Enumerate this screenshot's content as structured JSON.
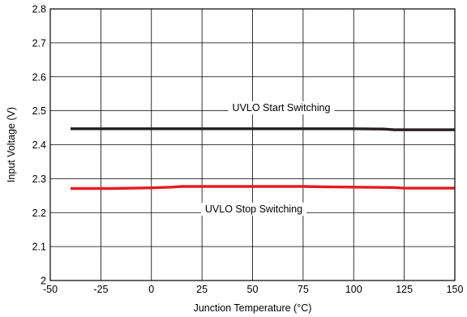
{
  "chart_data": {
    "type": "line",
    "xlabel": "Junction Temperature (°C)",
    "ylabel": "Input Voltage (V)",
    "xlim": [
      -50,
      150
    ],
    "ylim": [
      2,
      2.8
    ],
    "x_ticks": [
      "-50",
      "-25",
      "0",
      "25",
      "50",
      "75",
      "100",
      "125",
      "150"
    ],
    "y_ticks": [
      "2",
      "2.1",
      "2.2",
      "2.3",
      "2.4",
      "2.5",
      "2.6",
      "2.7",
      "2.8"
    ],
    "grid": true,
    "legend": "none",
    "series": [
      {
        "name": "UVLO Start Switching",
        "color": "#231f20",
        "x": [
          -40,
          0,
          25,
          50,
          75,
          100,
          115,
          120,
          125,
          150
        ],
        "y": [
          2.447,
          2.447,
          2.447,
          2.447,
          2.447,
          2.447,
          2.446,
          2.444,
          2.444,
          2.444
        ]
      },
      {
        "name": "UVLO Stop Switching",
        "color": "#e31b23",
        "x": [
          -40,
          -20,
          0,
          10,
          15,
          25,
          50,
          75,
          85,
          100,
          120,
          125,
          150
        ],
        "y": [
          2.271,
          2.271,
          2.273,
          2.275,
          2.277,
          2.277,
          2.277,
          2.277,
          2.276,
          2.275,
          2.274,
          2.272,
          2.272
        ]
      }
    ],
    "annotations": [
      {
        "text": "UVLO Start Switching"
      },
      {
        "text": "UVLO Stop Switching"
      }
    ]
  }
}
